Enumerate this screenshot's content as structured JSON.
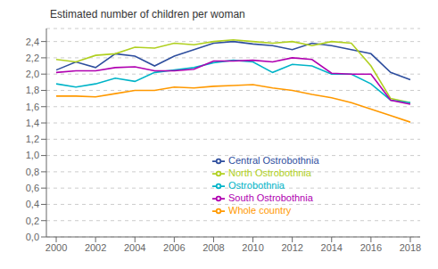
{
  "chart_data": {
    "type": "line",
    "title": "Estimated number of children per woman",
    "x": [
      2000,
      2001,
      2002,
      2003,
      2004,
      2005,
      2006,
      2007,
      2008,
      2009,
      2010,
      2011,
      2012,
      2013,
      2014,
      2015,
      2016,
      2017,
      2018
    ],
    "series": [
      {
        "name": "Central Ostrobothnia",
        "color": "#2e4e9e",
        "values": [
          2.05,
          2.15,
          2.08,
          2.25,
          2.22,
          2.1,
          2.22,
          2.3,
          2.38,
          2.4,
          2.37,
          2.35,
          2.3,
          2.38,
          2.35,
          2.3,
          2.25,
          2.02,
          1.93
        ]
      },
      {
        "name": "North Ostrobothnia",
        "color": "#b0d020",
        "values": [
          2.18,
          2.15,
          2.23,
          2.25,
          2.33,
          2.32,
          2.38,
          2.36,
          2.4,
          2.42,
          2.4,
          2.38,
          2.4,
          2.35,
          2.4,
          2.38,
          2.1,
          1.7,
          1.65
        ]
      },
      {
        "name": "Ostrobothnia",
        "color": "#00b4c8",
        "values": [
          1.88,
          1.84,
          1.88,
          1.95,
          1.91,
          2.02,
          2.05,
          2.08,
          2.14,
          2.17,
          2.15,
          2.02,
          2.12,
          2.1,
          2.0,
          2.0,
          1.88,
          1.68,
          1.65
        ]
      },
      {
        "name": "South Ostrobothnia",
        "color": "#b000b0",
        "values": [
          2.02,
          2.04,
          2.04,
          2.08,
          2.09,
          2.04,
          2.04,
          2.06,
          2.16,
          2.16,
          2.17,
          2.15,
          2.2,
          2.18,
          2.01,
          2.0,
          2.0,
          1.68,
          1.63
        ]
      },
      {
        "name": "Whole country",
        "color": "#ff9900",
        "values": [
          1.73,
          1.73,
          1.72,
          1.76,
          1.8,
          1.8,
          1.84,
          1.83,
          1.85,
          1.86,
          1.87,
          1.83,
          1.8,
          1.75,
          1.71,
          1.65,
          1.57,
          1.49,
          1.41
        ]
      }
    ],
    "xlim": [
      1999.5,
      2018.5
    ],
    "xticks": [
      2000,
      2002,
      2004,
      2006,
      2008,
      2010,
      2012,
      2014,
      2016,
      2018
    ],
    "ylim": [
      0.0,
      2.56
    ],
    "yticks": [
      {
        "value": 0.0,
        "label": "0,0"
      },
      {
        "value": 0.2,
        "label": "0,2"
      },
      {
        "value": 0.4,
        "label": "0,4"
      },
      {
        "value": 0.6,
        "label": "0,6"
      },
      {
        "value": 0.8,
        "label": "0,8"
      },
      {
        "value": 1.0,
        "label": "1,0"
      },
      {
        "value": 1.2,
        "label": "1,2"
      },
      {
        "value": 1.4,
        "label": "1,4"
      },
      {
        "value": 1.6,
        "label": "1,6"
      },
      {
        "value": 1.8,
        "label": "1,8"
      },
      {
        "value": 2.0,
        "label": "2,0"
      },
      {
        "value": 2.2,
        "label": "2,2"
      },
      {
        "value": 2.4,
        "label": "2,4"
      }
    ],
    "grid": "y",
    "legend": "bottom"
  }
}
